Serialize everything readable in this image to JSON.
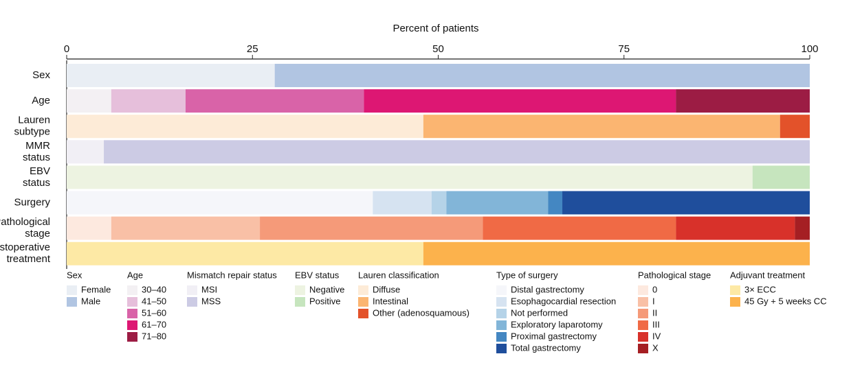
{
  "chart_data": {
    "type": "stacked-bar",
    "xlabel": "Percent of patients",
    "xlim": [
      0,
      100
    ],
    "xticks": [
      0,
      25,
      50,
      75,
      100
    ],
    "rows": [
      {
        "label": [
          "Sex"
        ],
        "legend_title": "Sex",
        "series": [
          {
            "name": "Female",
            "color": "#e9eef4",
            "value": 28
          },
          {
            "name": "Male",
            "color": "#b1c5e2",
            "value": 72
          }
        ]
      },
      {
        "label": [
          "Age"
        ],
        "legend_title": "Age",
        "series": [
          {
            "name": "30–40",
            "color": "#f3f0f3",
            "value": 6
          },
          {
            "name": "41–50",
            "color": "#e6bfdb",
            "value": 10
          },
          {
            "name": "51–60",
            "color": "#d963a8",
            "value": 24
          },
          {
            "name": "61–70",
            "color": "#dd1773",
            "value": 42
          },
          {
            "name": "71–80",
            "color": "#9c1c44",
            "value": 18
          }
        ]
      },
      {
        "label": [
          "Lauren",
          "subtype"
        ],
        "legend_title": "Lauren classification",
        "series": [
          {
            "name": "Diffuse",
            "color": "#fdebd7",
            "value": 48
          },
          {
            "name": "Intestinal",
            "color": "#fbb571",
            "value": 48
          },
          {
            "name": "Other (adenosquamous)",
            "color": "#e3522a",
            "value": 4
          }
        ]
      },
      {
        "label": [
          "MMR",
          "status"
        ],
        "legend_title": "Mismatch repair status",
        "series": [
          {
            "name": "MSI",
            "color": "#f1eff5",
            "value": 5
          },
          {
            "name": "MSS",
            "color": "#cccbe4",
            "value": 95
          }
        ]
      },
      {
        "label": [
          "EBV",
          "status"
        ],
        "legend_title": "EBV status",
        "series": [
          {
            "name": "Negative",
            "color": "#edf3e1",
            "value": 92.3
          },
          {
            "name": "Positive",
            "color": "#c6e5be",
            "value": 7.7
          }
        ]
      },
      {
        "label": [
          "Surgery"
        ],
        "legend_title": "Type of surgery",
        "series": [
          {
            "name": "Distal gastrectomy",
            "color": "#f5f6fa",
            "value": 41.2
          },
          {
            "name": "Esophagocardial resection",
            "color": "#d6e3f1",
            "value": 7.9
          },
          {
            "name": "Not performed",
            "color": "#b5d3e8",
            "value": 2
          },
          {
            "name": "Exploratory laparotomy",
            "color": "#82b5d8",
            "value": 13.7
          },
          {
            "name": "Proximal gastrectomy",
            "color": "#4487c2",
            "value": 1.9
          },
          {
            "name": "Total gastrectomy",
            "color": "#1f4e9c",
            "value": 33.3
          }
        ]
      },
      {
        "label": [
          "Pathological",
          "stage"
        ],
        "legend_title": "Pathological stage",
        "series": [
          {
            "name": "0",
            "color": "#fde9df",
            "value": 6
          },
          {
            "name": "I",
            "color": "#f9c0a6",
            "value": 20
          },
          {
            "name": "II",
            "color": "#f59a79",
            "value": 30
          },
          {
            "name": "III",
            "color": "#f06a45",
            "value": 26
          },
          {
            "name": "IV",
            "color": "#d8312a",
            "value": 16
          },
          {
            "name": "X",
            "color": "#a51f23",
            "value": 2
          }
        ]
      },
      {
        "label": [
          "Postoperative",
          "treatment"
        ],
        "legend_title": "Adjuvant treatment",
        "series": [
          {
            "name": "3× ECC",
            "color": "#fde9a5",
            "value": 48
          },
          {
            "name": "45 Gy + 5 weeks CC",
            "color": "#fcb24c",
            "value": 52
          }
        ]
      }
    ]
  }
}
